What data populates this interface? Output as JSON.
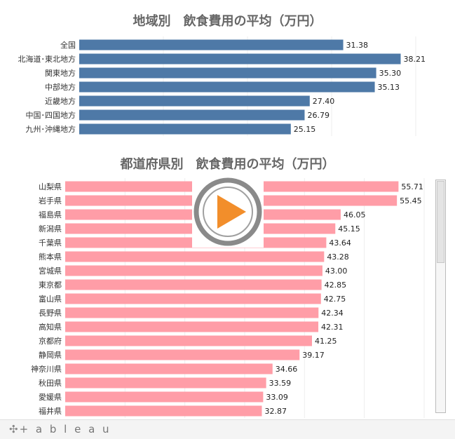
{
  "charts": {
    "regional_title": "地域別　飲食費用の平均（万円）",
    "prefecture_title": "都道府県別　飲食費用の平均（万円）"
  },
  "chart_data": [
    {
      "type": "bar",
      "orientation": "horizontal",
      "title": "地域別　飲食費用の平均（万円）",
      "categories": [
        "全国",
        "北海道･東北地方",
        "関東地方",
        "中部地方",
        "近畿地方",
        "中国･四国地方",
        "九州･沖縄地方"
      ],
      "values": [
        31.38,
        38.21,
        35.3,
        35.13,
        27.4,
        26.79,
        25.15
      ],
      "labels": [
        "31.38",
        "38.21",
        "35.30",
        "35.13",
        "27.40",
        "26.79",
        "25.15"
      ],
      "color": "#4e79a7",
      "xlim": [
        0,
        40
      ]
    },
    {
      "type": "bar",
      "orientation": "horizontal",
      "title": "都道府県別　飲食費用の平均（万円）",
      "categories": [
        "山梨県",
        "岩手県",
        "福島県",
        "新潟県",
        "千葉県",
        "熊本県",
        "宮城県",
        "東京都",
        "富山県",
        "長野県",
        "高知県",
        "京都府",
        "静岡県",
        "神奈川県",
        "秋田県",
        "愛媛県",
        "福井県"
      ],
      "values": [
        55.71,
        55.45,
        46.05,
        45.15,
        43.64,
        43.28,
        43.0,
        42.85,
        42.75,
        42.34,
        42.31,
        41.25,
        39.17,
        34.66,
        33.59,
        33.09,
        32.87
      ],
      "labels": [
        "55.71",
        "55.45",
        "46.05",
        "45.15",
        "43.64",
        "43.28",
        "43.00",
        "42.85",
        "42.75",
        "42.34",
        "42.31",
        "41.25",
        "39.17",
        "34.66",
        "33.59",
        "33.09",
        "32.87"
      ],
      "color": "#ff9da7",
      "xlim": [
        0,
        60
      ]
    }
  ],
  "footer": {
    "brand": "+ a b l e a u",
    "brand_icon": "tableau-logo-icon"
  },
  "colors": {
    "regional_bar": "#4e79a7",
    "prefecture_bar": "#ff9da7",
    "play_orange": "#f28e2b"
  }
}
